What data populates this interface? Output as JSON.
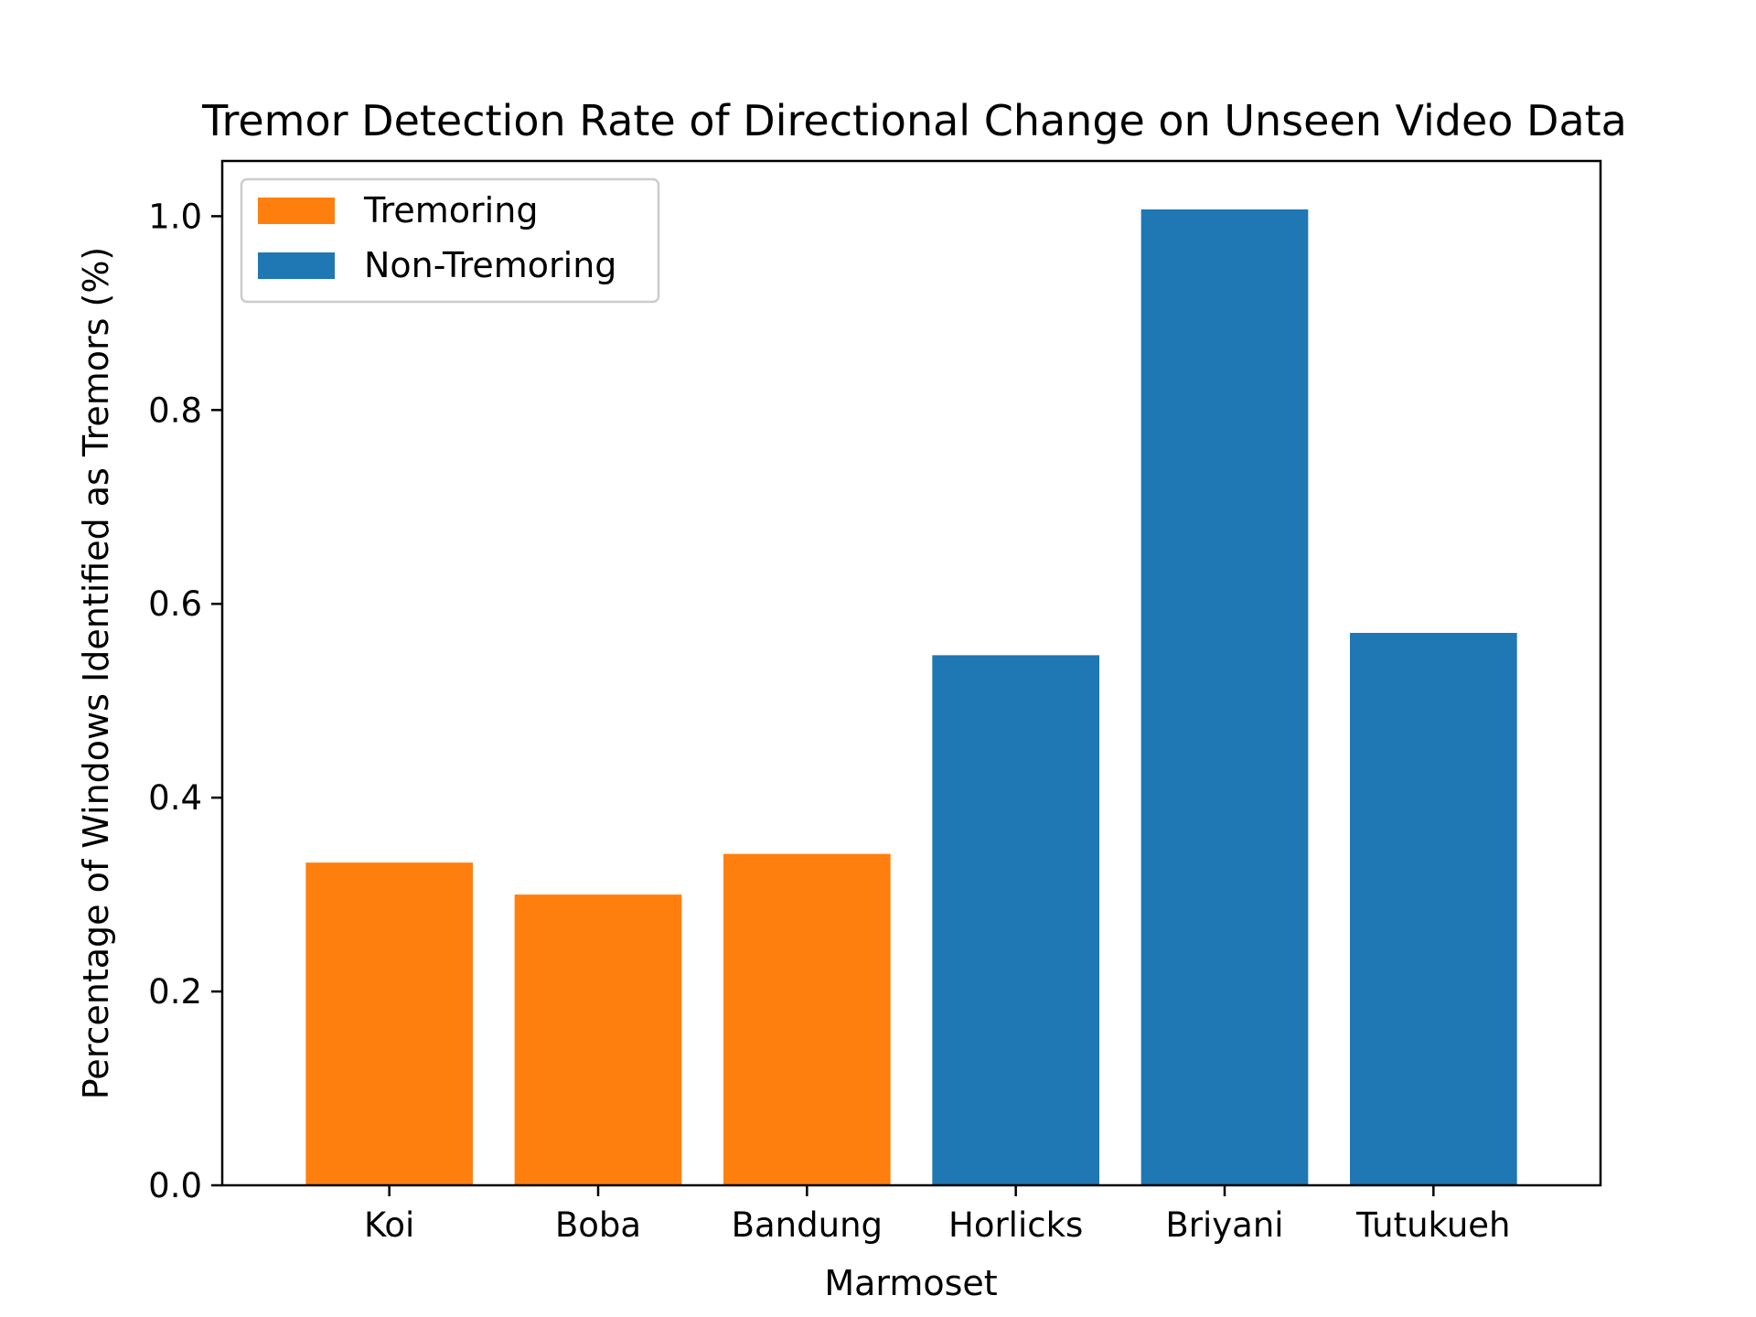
{
  "chart_data": {
    "type": "bar",
    "title": "Tremor Detection Rate of Directional Change on Unseen Video Data",
    "xlabel": "Marmoset",
    "ylabel": "Percentage of Windows Identified as Tremors (%)",
    "categories": [
      "Koi",
      "Boba",
      "Bandung",
      "Horlicks",
      "Briyani",
      "Tutukueh"
    ],
    "values": [
      0.333,
      0.3,
      0.342,
      0.547,
      1.007,
      0.57
    ],
    "groups": [
      "Tremoring",
      "Tremoring",
      "Tremoring",
      "Non-Tremoring",
      "Non-Tremoring",
      "Non-Tremoring"
    ],
    "ylim": [
      0,
      1.057
    ],
    "yticks": [
      0.0,
      0.2,
      0.4,
      0.6,
      0.8,
      1.0
    ],
    "ytick_labels": [
      "0.0",
      "0.2",
      "0.4",
      "0.6",
      "0.8",
      "1.0"
    ],
    "grid": false,
    "legend": {
      "position": "top-left",
      "entries": [
        {
          "label": "Tremoring",
          "color": "#ff7f0e"
        },
        {
          "label": "Non-Tremoring",
          "color": "#1f77b4"
        }
      ]
    }
  }
}
